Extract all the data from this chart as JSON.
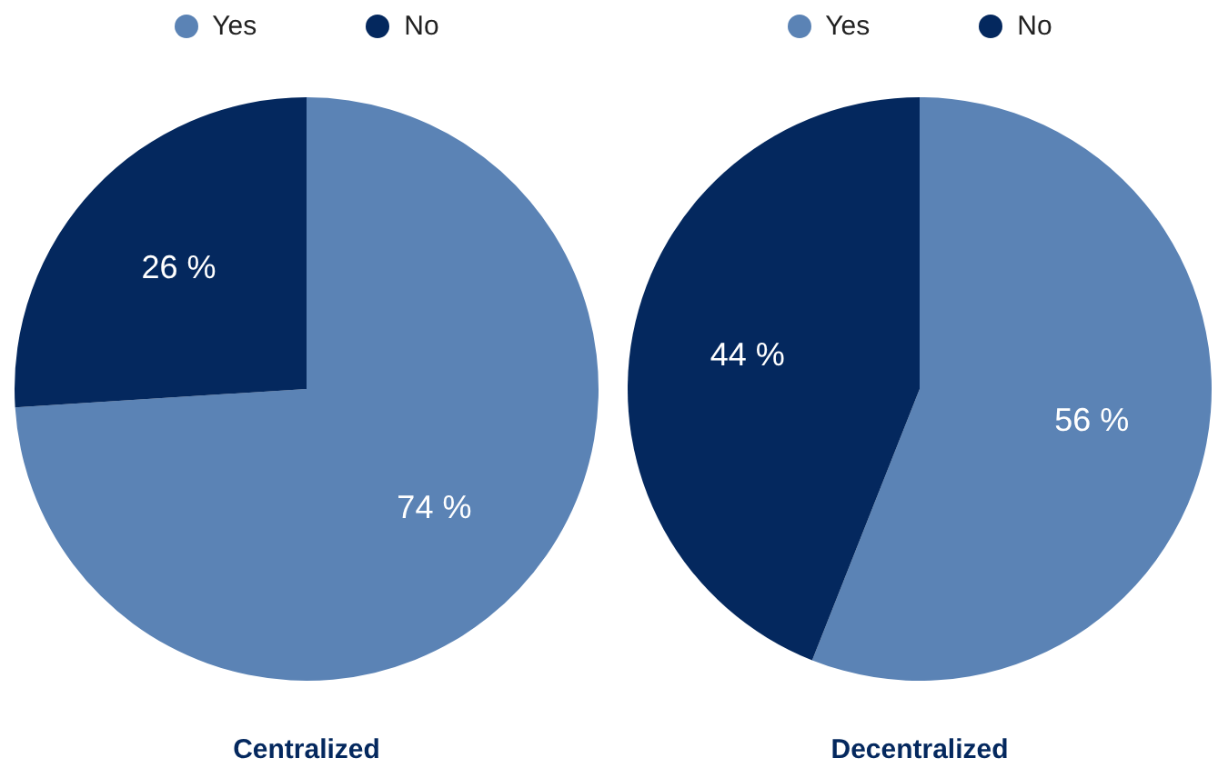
{
  "chart_data": [
    {
      "type": "pie",
      "title": "Centralized",
      "categories": [
        "Yes",
        "No"
      ],
      "values": [
        74,
        26
      ],
      "colors": [
        "#5b83b5",
        "#04285e"
      ],
      "value_labels": [
        "74 %",
        "26 %"
      ],
      "legend": "top"
    },
    {
      "type": "pie",
      "title": "Decentralized",
      "categories": [
        "Yes",
        "No"
      ],
      "values": [
        56,
        44
      ],
      "colors": [
        "#5b83b5",
        "#04285e"
      ],
      "value_labels": [
        "56 %",
        "44 %"
      ],
      "legend": "top"
    }
  ]
}
